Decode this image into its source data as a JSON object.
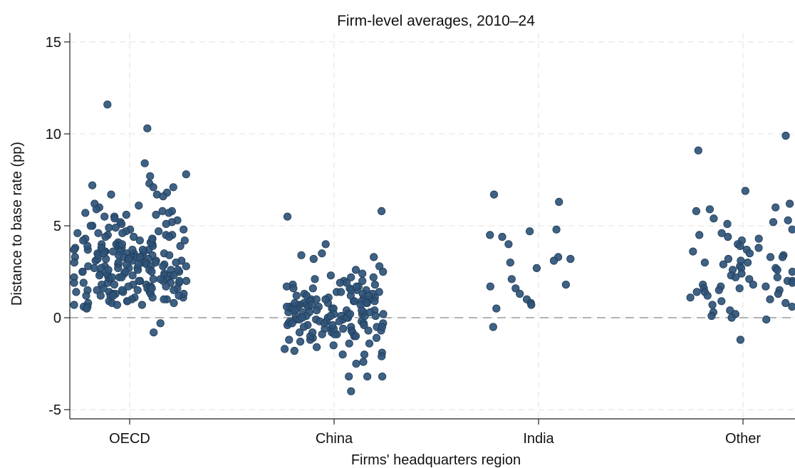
{
  "chart_data": {
    "type": "scatter",
    "title": "Firm-level averages, 2010–24",
    "xlabel": "Firms' headquarters region",
    "ylabel": "Distance to base rate (pp)",
    "categories": [
      "OECD",
      "China",
      "India",
      "Other"
    ],
    "ylim": [
      -5.5,
      15.5
    ],
    "yticks": [
      -5,
      0,
      5,
      10,
      15
    ],
    "ytick_labels": [
      "-5",
      "0",
      "5",
      "10",
      "15"
    ],
    "reference_line": {
      "y": 0,
      "style": "dashed",
      "color": "#b3b3b3"
    },
    "grid": true,
    "point_color": "#2f5478",
    "jitter": true,
    "series": [
      {
        "category": "OECD",
        "values": [
          10.3,
          11.6,
          8.4,
          7.8,
          7.7,
          7.3,
          7.2,
          7.1,
          7.1,
          6.8,
          6.7,
          6.7,
          6.6,
          6.2,
          6.1,
          6.0,
          5.9,
          5.8,
          5.8,
          5.7,
          5.7,
          5.6,
          5.6,
          5.5,
          5.5,
          5.4,
          5.3,
          5.2,
          5.2,
          5.1,
          5.1,
          5.0,
          5.0,
          4.9,
          4.9,
          4.8,
          4.8,
          4.7,
          4.7,
          4.6,
          4.6,
          4.5,
          4.5,
          4.5,
          4.4,
          4.4,
          4.3,
          4.3,
          4.2,
          4.2,
          4.1,
          4.1,
          4.0,
          4.0,
          4.0,
          3.9,
          3.9,
          3.9,
          3.8,
          3.8,
          3.8,
          3.7,
          3.7,
          3.7,
          3.6,
          3.6,
          3.6,
          3.5,
          3.5,
          3.5,
          3.5,
          3.4,
          3.4,
          3.4,
          3.3,
          3.3,
          3.3,
          3.3,
          3.2,
          3.2,
          3.2,
          3.1,
          3.1,
          3.1,
          3.0,
          3.0,
          3.0,
          3.0,
          2.9,
          2.9,
          2.9,
          2.8,
          2.8,
          2.8,
          2.8,
          2.7,
          2.7,
          2.7,
          2.6,
          2.6,
          2.6,
          2.5,
          2.5,
          2.5,
          2.5,
          2.4,
          2.4,
          2.4,
          2.3,
          2.3,
          2.3,
          2.3,
          2.2,
          2.2,
          2.2,
          2.1,
          2.1,
          2.1,
          2.0,
          2.0,
          2.0,
          1.9,
          1.9,
          1.9,
          1.8,
          1.8,
          1.8,
          1.7,
          1.7,
          1.7,
          1.6,
          1.6,
          1.6,
          1.5,
          1.5,
          1.5,
          1.4,
          1.4,
          1.4,
          1.3,
          1.3,
          1.3,
          1.2,
          1.2,
          1.2,
          1.1,
          1.1,
          1.1,
          1.0,
          1.0,
          1.0,
          0.9,
          0.9,
          0.9,
          0.8,
          0.8,
          0.8,
          0.7,
          0.7,
          0.7,
          0.6,
          0.6,
          0.5,
          0.5,
          -0.3,
          -0.8,
          3.9,
          3.6,
          3.2,
          2.9,
          2.6,
          2.2,
          1.9,
          1.5,
          1.2,
          4.2,
          3.4,
          2.7,
          2.0,
          1.3,
          3.8,
          3.1,
          2.4,
          1.7,
          4.4,
          3.7,
          3.0,
          2.3,
          1.6,
          4.1,
          3.5,
          2.8,
          2.1,
          1.4,
          3.9,
          3.2,
          2.5,
          1.8,
          4.3,
          3.6,
          2.9,
          2.2,
          1.5,
          4.0,
          3.3,
          2.6,
          1.9,
          1.2,
          3.7,
          3.0,
          2.3,
          1.6,
          4.6,
          3.4,
          2.7,
          2.0
        ]
      },
      {
        "category": "China",
        "values": [
          5.8,
          5.5,
          4.0,
          3.5,
          3.4,
          3.3,
          3.2,
          2.8,
          2.6,
          2.5,
          2.4,
          2.3,
          2.2,
          2.2,
          2.1,
          2.0,
          2.0,
          1.9,
          1.9,
          1.8,
          1.8,
          1.7,
          1.7,
          1.6,
          1.6,
          1.5,
          1.5,
          1.4,
          1.4,
          1.3,
          1.3,
          1.2,
          1.2,
          1.1,
          1.1,
          1.0,
          1.0,
          1.0,
          0.9,
          0.9,
          0.9,
          0.8,
          0.8,
          0.8,
          0.7,
          0.7,
          0.7,
          0.6,
          0.6,
          0.6,
          0.5,
          0.5,
          0.5,
          0.4,
          0.4,
          0.4,
          0.3,
          0.3,
          0.3,
          0.2,
          0.2,
          0.2,
          0.1,
          0.1,
          0.1,
          0.0,
          0.0,
          0.0,
          -0.1,
          -0.1,
          -0.1,
          -0.2,
          -0.2,
          -0.2,
          -0.3,
          -0.3,
          -0.3,
          -0.4,
          -0.4,
          -0.5,
          -0.5,
          -0.5,
          -0.6,
          -0.6,
          -0.7,
          -0.7,
          -0.8,
          -0.8,
          -0.9,
          -0.9,
          -1.0,
          -1.0,
          -1.1,
          -1.2,
          -1.2,
          -1.3,
          -1.4,
          -1.5,
          -1.6,
          -1.7,
          -1.8,
          -1.9,
          -2.0,
          -2.0,
          -2.1,
          -2.4,
          -2.5,
          -3.2,
          -3.2,
          -3.2,
          -4.0,
          0.7,
          0.3,
          -0.2,
          1.2,
          -0.6,
          0.9,
          0.1,
          -0.4,
          1.5,
          0.5,
          -0.8,
          0.2,
          -0.3,
          1.1,
          0.6,
          -1.1,
          0.8,
          0.0,
          -0.5,
          1.3,
          0.4,
          -0.9,
          0.1,
          1.7,
          -0.2,
          0.6,
          -0.7,
          1.0,
          0.3,
          -1.4,
          0.9,
          -0.1,
          0.5,
          -0.6,
          1.4,
          0.2,
          -0.3,
          0.7,
          -1.0,
          1.6,
          0.0,
          0.4,
          -0.8,
          1.2,
          0.8,
          -0.4,
          0.1
        ]
      },
      {
        "category": "India",
        "values": [
          6.7,
          6.3,
          4.8,
          4.7,
          4.5,
          4.4,
          4.0,
          3.3,
          3.2,
          3.1,
          3.0,
          2.7,
          2.1,
          1.8,
          1.7,
          1.6,
          1.3,
          1.0,
          0.8,
          0.7,
          0.5,
          -0.5
        ]
      },
      {
        "category": "Other",
        "values": [
          9.9,
          9.1,
          6.9,
          6.2,
          6.0,
          5.9,
          5.8,
          5.4,
          5.3,
          5.2,
          5.1,
          4.8,
          4.6,
          4.5,
          4.4,
          4.3,
          4.2,
          4.0,
          3.9,
          3.8,
          3.7,
          3.6,
          3.5,
          3.4,
          3.3,
          3.3,
          3.2,
          3.1,
          3.0,
          3.0,
          2.9,
          2.8,
          2.7,
          2.7,
          2.6,
          2.6,
          2.5,
          2.4,
          2.3,
          2.2,
          2.2,
          2.1,
          2.0,
          2.0,
          1.9,
          1.8,
          1.8,
          1.7,
          1.7,
          1.6,
          1.6,
          1.5,
          1.5,
          1.4,
          1.4,
          1.3,
          1.2,
          1.1,
          1.0,
          0.9,
          0.8,
          0.7,
          0.6,
          0.4,
          0.3,
          0.2,
          0.1,
          0.0,
          -0.1,
          -1.2
        ]
      }
    ]
  }
}
